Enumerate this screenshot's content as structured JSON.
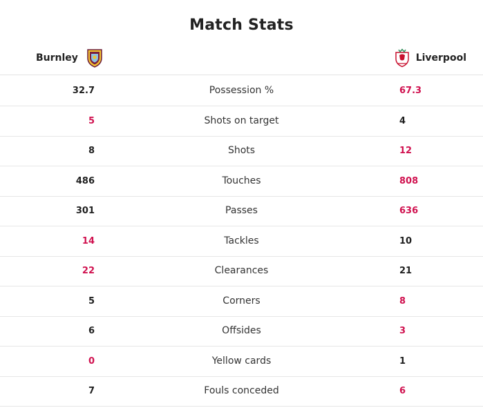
{
  "title": "Match Stats",
  "home_team": {
    "name": "Burnley",
    "crest_icon": "burnley-crest-icon"
  },
  "away_team": {
    "name": "Liverpool",
    "crest_icon": "liverpool-crest-icon"
  },
  "colors": {
    "highlight": "#d0114f",
    "text": "#1f1f1f"
  },
  "stats": [
    {
      "label": "Possession %",
      "home": "32.7",
      "away": "67.3",
      "leader": "away"
    },
    {
      "label": "Shots on target",
      "home": "5",
      "away": "4",
      "leader": "home"
    },
    {
      "label": "Shots",
      "home": "8",
      "away": "12",
      "leader": "away"
    },
    {
      "label": "Touches",
      "home": "486",
      "away": "808",
      "leader": "away"
    },
    {
      "label": "Passes",
      "home": "301",
      "away": "636",
      "leader": "away"
    },
    {
      "label": "Tackles",
      "home": "14",
      "away": "10",
      "leader": "home"
    },
    {
      "label": "Clearances",
      "home": "22",
      "away": "21",
      "leader": "home"
    },
    {
      "label": "Corners",
      "home": "5",
      "away": "8",
      "leader": "away"
    },
    {
      "label": "Offsides",
      "home": "6",
      "away": "3",
      "leader": "away"
    },
    {
      "label": "Yellow cards",
      "home": "0",
      "away": "1",
      "leader": "home"
    },
    {
      "label": "Fouls conceded",
      "home": "7",
      "away": "6",
      "leader": "away"
    }
  ]
}
